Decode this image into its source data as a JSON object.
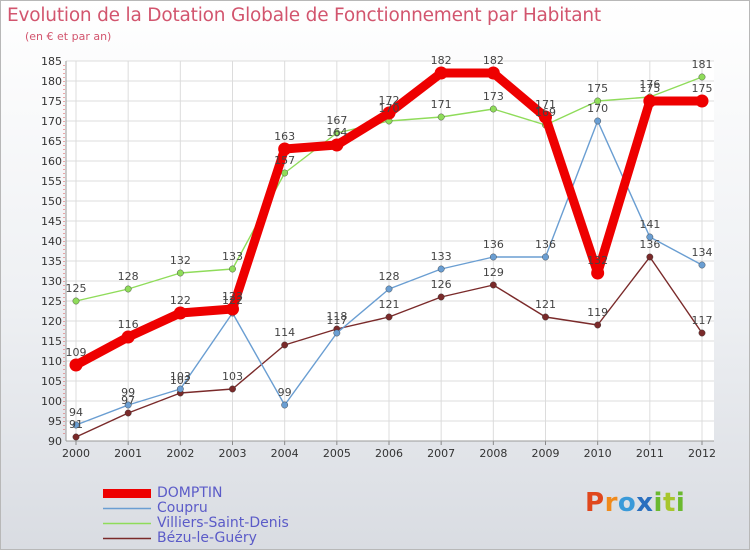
{
  "title": "Evolution de la Dotation Globale de Fonctionnement par Habitant",
  "subtitle": "(en € et par an)",
  "brand": "Proxiti",
  "chart_data": {
    "type": "line",
    "title": "Evolution de la Dotation Globale de Fonctionnement par Habitant",
    "subtitle": "(en € et par an)",
    "xlabel": "",
    "ylabel": "",
    "x": [
      2000,
      2001,
      2002,
      2003,
      2004,
      2005,
      2006,
      2007,
      2008,
      2009,
      2010,
      2011,
      2012
    ],
    "ylim": [
      90,
      185
    ],
    "yticks": [
      90,
      95,
      100,
      105,
      110,
      115,
      120,
      125,
      130,
      135,
      140,
      145,
      150,
      155,
      160,
      165,
      170,
      175,
      180,
      185
    ],
    "grid": true,
    "legend_position": "bottom-left",
    "series": [
      {
        "name": "DOMPTIN",
        "color": "#ee0000",
        "values": [
          109,
          116,
          122,
          123,
          163,
          164,
          172,
          182,
          182,
          171,
          132,
          175,
          175
        ],
        "labels": [
          "109",
          "116",
          "122",
          "123",
          "163",
          "164",
          "172",
          "182",
          "182",
          "171",
          "132",
          "175",
          "175"
        ]
      },
      {
        "name": "Coupru",
        "color": "#6a9ed2",
        "values": [
          94,
          99,
          103,
          122,
          99,
          117,
          128,
          133,
          136,
          136,
          170,
          141,
          134
        ],
        "labels": [
          "94",
          "99",
          "103",
          "122",
          "99",
          "117",
          "128",
          "133",
          "136",
          "136",
          "170",
          "141",
          "134"
        ]
      },
      {
        "name": "Villiers-Saint-Denis",
        "color": "#8fdc5a",
        "values": [
          125,
          128,
          132,
          133,
          157,
          167,
          170,
          171,
          173,
          169,
          175,
          176,
          181
        ],
        "labels": [
          "125",
          "128",
          "132",
          "133",
          "157",
          "167",
          "170",
          "171",
          "173",
          "169",
          "175",
          "176",
          "181"
        ]
      },
      {
        "name": "Bézu-le-Guéry",
        "color": "#7a2a2a",
        "values": [
          91,
          97,
          102,
          103,
          114,
          118,
          121,
          126,
          129,
          121,
          119,
          136,
          117
        ],
        "labels": [
          "91",
          "97",
          "102",
          "103",
          "114",
          "118",
          "121",
          "126",
          "129",
          "121",
          "119",
          "136",
          "117"
        ]
      }
    ]
  }
}
